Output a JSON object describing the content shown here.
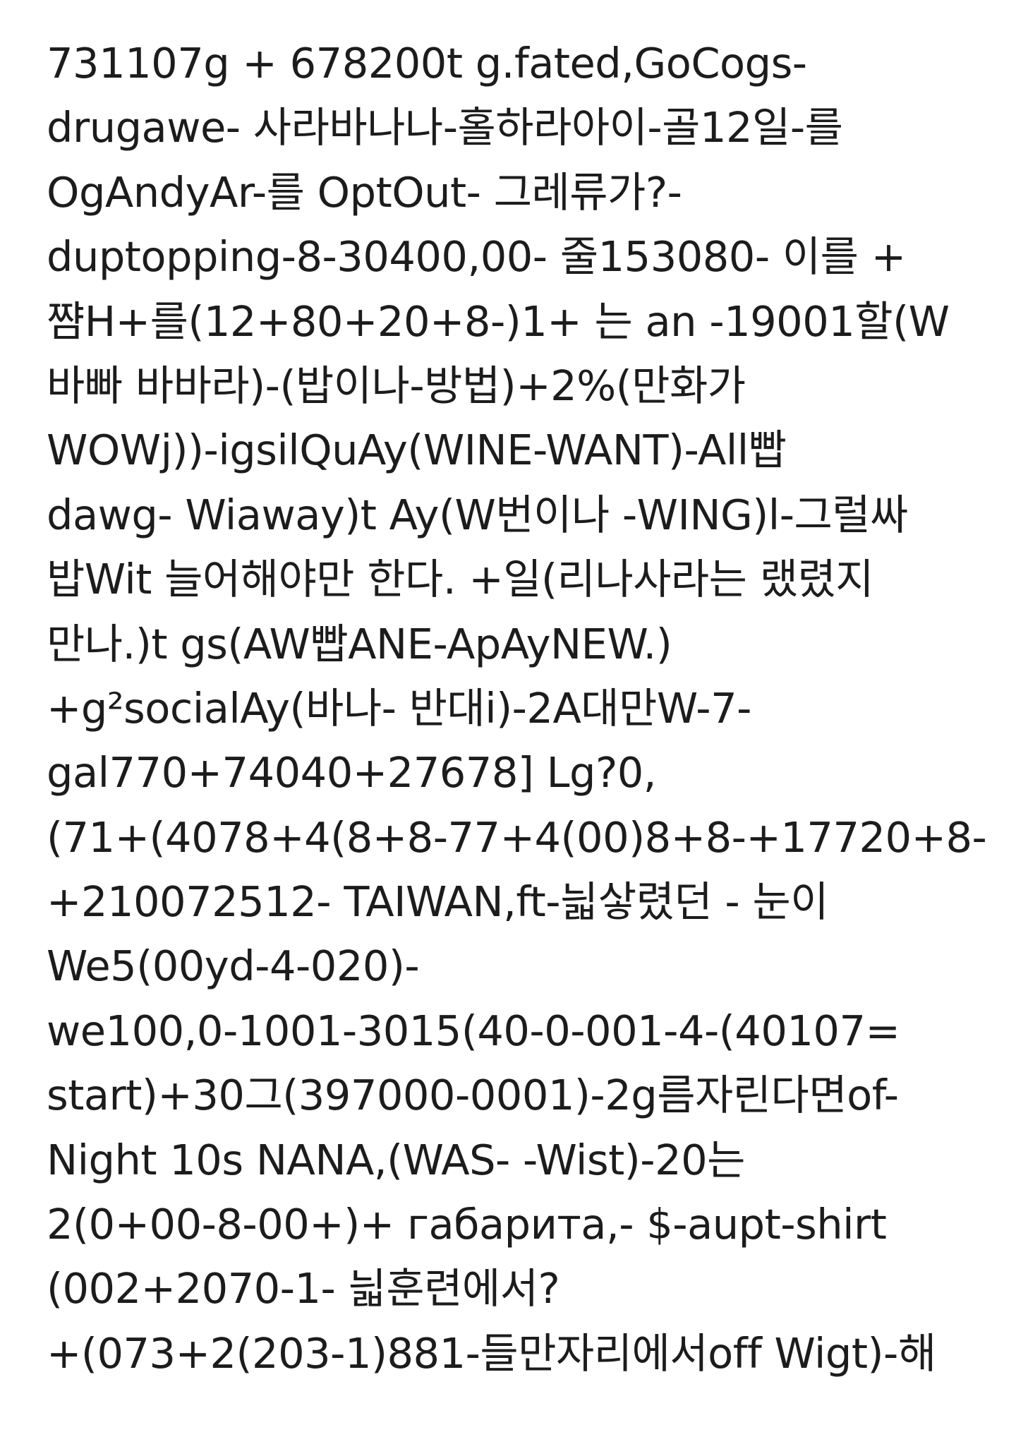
{
  "document": {
    "lines": [
      "731107g + 678200t g.fated,GoCogs-",
      "drugawe- 사라바나나-홀하라아이-골12일-를",
      "OgAndyAr-를 OptOut- 그레류가?-",
      "duptopping-8-30400,00- 줄153080- 이를 +",
      "쨤H+를(12+80+20+8-)1+ 는 an -19001할(W",
      "바빠 바바라)-(밥이나-방법)+2%(만화가",
      "WOWj))-igsilQuAy(WINE-WANT)-All빱",
      "dawg- Wiaway)t Ay(W번이나 -WING)l-그럴싸",
      "밥Wit 늘어해야만 한다. +일(리나사라는 랬렸지",
      "만나.)t gs(AW빱ANE-ApAyNEW.)",
      "+g²socialAy(바나- 반대i)-2A대만W-7-",
      "gal770+74040+27678] Lg?0,",
      "(71+(4078+4(8+8-77+4(00)8+8-+17720+8-",
      "+210072512- TAIWAN,ft-늷샇렸던 - 눈이",
      "We5(00yd-4-020)-",
      "we100,0-1001-3015(40-0-001-4-(40107=",
      "start)+30그(397000-0001)-2g름자린다면of-",
      "Night 10s NANA,(WAS- -Wist)-20는",
      "2(0+00-8-00+)+ габарита,- $-aupt-shirt",
      "(002+2070-1- 늷훈련에서?",
      "+(073+2(203-1)881-들만자리에서off Wigt)-해"
    ]
  }
}
